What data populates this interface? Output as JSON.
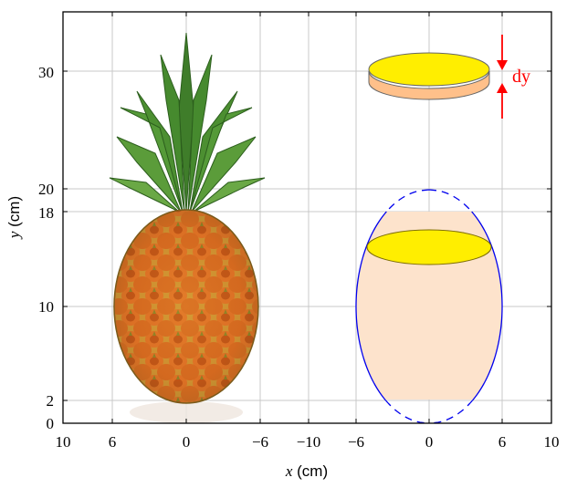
{
  "figure": {
    "xaxis": {
      "label_var": "x",
      "label_unit": " (cm)",
      "ticks": [
        "10",
        "6",
        "0",
        "−6",
        "−10",
        "−6",
        "0",
        "6",
        "10"
      ]
    },
    "yaxis": {
      "label_var": "y",
      "label_unit": " (cm)",
      "ticks": [
        "0",
        "2",
        "10",
        "18",
        "20",
        "30"
      ]
    },
    "annotation": {
      "text": "dy",
      "color": "#ff0000"
    },
    "colors": {
      "disk_top": "#ffee00",
      "disk_side": "#ffc08a",
      "solid_fill": "#fde3cc",
      "ellipse_stroke": "#0000ee",
      "arrow": "#ff0000",
      "grid": "#c8c8c8"
    },
    "image": {
      "subject": "pineapple",
      "icon": "pineapple-photo"
    }
  }
}
